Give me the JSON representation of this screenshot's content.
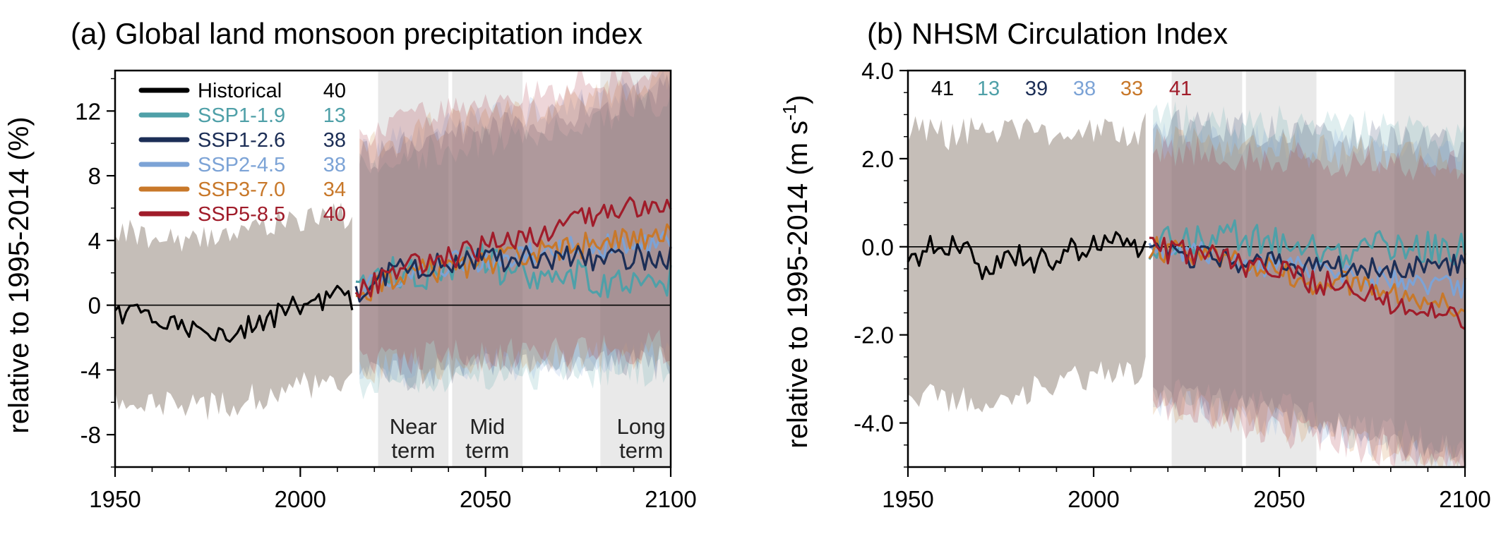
{
  "colors": {
    "Historical": "#000000",
    "SSP1-1.9": "#4fa0a8",
    "SSP1-2.6": "#1c2e56",
    "SSP2-4.5": "#7ca3d6",
    "SSP3-7.0": "#c8782a",
    "SSP5-8.5": "#a01c2a",
    "hist_band": "#bbb3ab",
    "period_shade": "#e9e9e9"
  },
  "chart_data": [
    {
      "type": "line",
      "title": "(a) Global land monsoon precipitation index",
      "ylabel": "relative to 1995-2014 (%)",
      "xlabel": "",
      "xlim": [
        1950,
        2100
      ],
      "ylim": [
        -10,
        14.5
      ],
      "xticks": [
        1950,
        2000,
        2050,
        2100
      ],
      "yticks": [
        -8,
        -4,
        0,
        4,
        8,
        12
      ],
      "ytick_labels": [
        "-8",
        "-4",
        "0",
        "4",
        "8",
        "12"
      ],
      "grid": false,
      "legend": "top-left",
      "periods": [
        {
          "label_line1": "Near",
          "label_line2": "term",
          "start": 2021,
          "end": 2040
        },
        {
          "label_line1": "Mid",
          "label_line2": "term",
          "start": 2041,
          "end": 2060
        },
        {
          "label_line1": "Long",
          "label_line2": "term",
          "start": 2081,
          "end": 2100
        }
      ],
      "series": [
        {
          "name": "Historical",
          "count": "40",
          "x": [
            1950,
            1955,
            1960,
            1965,
            1970,
            1975,
            1980,
            1985,
            1990,
            1995,
            2000,
            2005,
            2010,
            2014
          ],
          "values": [
            -0.6,
            -0.2,
            -0.8,
            -1.2,
            -1.4,
            -1.3,
            -1.7,
            -1.4,
            -1.1,
            -0.5,
            0.0,
            0.2,
            0.5,
            0.4
          ],
          "band_low": [
            -5.8,
            -6.0,
            -6.2,
            -6.1,
            -6.0,
            -6.3,
            -6.1,
            -5.8,
            -5.6,
            -5.2,
            -5.0,
            -4.8,
            -4.6,
            -4.5
          ],
          "band_high": [
            4.6,
            4.4,
            4.2,
            4.3,
            4.1,
            4.3,
            4.6,
            4.8,
            5.0,
            5.2,
            5.3,
            5.4,
            5.6,
            5.6
          ]
        },
        {
          "name": "SSP1-1.9",
          "count": "13",
          "x": [
            2015,
            2020,
            2025,
            2030,
            2035,
            2040,
            2045,
            2050,
            2055,
            2060,
            2065,
            2070,
            2075,
            2080,
            2085,
            2090,
            2095,
            2100
          ],
          "values": [
            0.5,
            1.3,
            1.9,
            2.2,
            2.1,
            2.2,
            2.5,
            2.7,
            2.3,
            2.1,
            2.0,
            1.9,
            1.8,
            1.6,
            1.5,
            1.7,
            1.8,
            1.6
          ]
        },
        {
          "name": "SSP1-2.6",
          "count": "38",
          "x": [
            2015,
            2020,
            2025,
            2030,
            2035,
            2040,
            2045,
            2050,
            2055,
            2060,
            2065,
            2070,
            2075,
            2080,
            2085,
            2090,
            2095,
            2100
          ],
          "values": [
            0.6,
            1.5,
            2.0,
            2.3,
            2.5,
            2.6,
            2.7,
            2.8,
            2.9,
            2.9,
            2.9,
            2.9,
            3.0,
            2.9,
            2.9,
            3.0,
            2.9,
            2.9
          ]
        },
        {
          "name": "SSP2-4.5",
          "count": "38",
          "x": [
            2015,
            2020,
            2025,
            2030,
            2035,
            2040,
            2045,
            2050,
            2055,
            2060,
            2065,
            2070,
            2075,
            2080,
            2085,
            2090,
            2095,
            2100
          ],
          "values": [
            0.6,
            1.3,
            1.8,
            2.1,
            2.3,
            2.5,
            2.7,
            2.9,
            3.0,
            3.1,
            3.3,
            3.4,
            3.5,
            3.6,
            3.7,
            3.8,
            3.9,
            4.0
          ]
        },
        {
          "name": "SSP3-7.0",
          "count": "34",
          "x": [
            2015,
            2020,
            2025,
            2030,
            2035,
            2040,
            2045,
            2050,
            2055,
            2060,
            2065,
            2070,
            2075,
            2080,
            2085,
            2090,
            2095,
            2100
          ],
          "values": [
            0.5,
            1.2,
            1.6,
            1.9,
            2.1,
            2.2,
            2.4,
            2.7,
            2.9,
            3.1,
            3.3,
            3.5,
            3.6,
            3.8,
            4.0,
            4.2,
            4.3,
            4.4
          ]
        },
        {
          "name": "SSP5-8.5",
          "count": "40",
          "x": [
            2015,
            2020,
            2025,
            2030,
            2035,
            2040,
            2045,
            2050,
            2055,
            2060,
            2065,
            2070,
            2075,
            2080,
            2085,
            2090,
            2095,
            2100
          ],
          "values": [
            0.6,
            1.4,
            2.0,
            2.4,
            2.7,
            2.9,
            3.2,
            3.6,
            3.9,
            4.2,
            4.5,
            4.8,
            5.2,
            5.5,
            5.8,
            6.1,
            6.3,
            6.2
          ]
        }
      ],
      "future_band": {
        "x": [
          2015,
          2040,
          2060,
          2080,
          2100
        ],
        "low": [
          -5.5,
          -5.0,
          -4.8,
          -4.6,
          -4.4
        ],
        "high": [
          7.5,
          9.0,
          9.8,
          10.8,
          12.0
        ]
      }
    },
    {
      "type": "line",
      "title": "(b) NHSM Circulation Index",
      "ylabel": "relative to 1995-2014 (m s",
      "ylabel_sup": "-1",
      "ylabel_end": ")",
      "xlabel": "",
      "xlim": [
        1950,
        2100
      ],
      "ylim": [
        -5,
        4
      ],
      "xticks": [
        1950,
        2000,
        2050,
        2100
      ],
      "yticks": [
        -4,
        -2,
        0,
        2,
        4
      ],
      "ytick_labels": [
        "-4.0",
        "-2.0",
        "0.0",
        "2.0",
        "4.0"
      ],
      "grid": false,
      "periods": [
        {
          "start": 2021,
          "end": 2040
        },
        {
          "start": 2041,
          "end": 2060
        },
        {
          "start": 2081,
          "end": 2100
        }
      ],
      "counts": [
        "41",
        "13",
        "39",
        "38",
        "33",
        "41"
      ],
      "series": [
        {
          "name": "Historical",
          "x": [
            1950,
            1955,
            1960,
            1965,
            1970,
            1975,
            1980,
            1985,
            1990,
            1995,
            2000,
            2005,
            2010,
            2014
          ],
          "values": [
            -0.3,
            -0.1,
            0.1,
            0.0,
            -0.6,
            -0.4,
            -0.2,
            -0.3,
            -0.2,
            -0.1,
            0.0,
            0.1,
            0.1,
            0.0
          ],
          "band_low": [
            -3.5,
            -3.4,
            -3.6,
            -3.5,
            -3.5,
            -3.4,
            -3.3,
            -3.2,
            -3.1,
            -3.0,
            -2.9,
            -2.9,
            -2.8,
            -2.8
          ],
          "band_high": [
            2.6,
            2.7,
            2.5,
            2.6,
            2.7,
            2.6,
            2.7,
            2.6,
            2.6,
            2.7,
            2.7,
            2.6,
            2.6,
            2.7
          ]
        },
        {
          "name": "SSP1-1.9",
          "x": [
            2015,
            2020,
            2025,
            2030,
            2035,
            2040,
            2045,
            2050,
            2055,
            2060,
            2065,
            2070,
            2075,
            2080,
            2085,
            2090,
            2095,
            2100
          ],
          "values": [
            0.0,
            0.1,
            0.1,
            0.2,
            0.3,
            0.2,
            0.1,
            0.2,
            0.1,
            0.0,
            -0.1,
            0.0,
            0.0,
            -0.1,
            0.0,
            0.1,
            0.0,
            -0.1
          ]
        },
        {
          "name": "SSP1-2.6",
          "x": [
            2015,
            2020,
            2025,
            2030,
            2035,
            2040,
            2045,
            2050,
            2055,
            2060,
            2065,
            2070,
            2075,
            2080,
            2085,
            2090,
            2095,
            2100
          ],
          "values": [
            0.0,
            -0.1,
            -0.2,
            -0.2,
            -0.3,
            -0.3,
            -0.4,
            -0.4,
            -0.5,
            -0.5,
            -0.5,
            -0.6,
            -0.5,
            -0.5,
            -0.4,
            -0.4,
            -0.4,
            -0.5
          ]
        },
        {
          "name": "SSP2-4.5",
          "x": [
            2015,
            2020,
            2025,
            2030,
            2035,
            2040,
            2045,
            2050,
            2055,
            2060,
            2065,
            2070,
            2075,
            2080,
            2085,
            2090,
            2095,
            2100
          ],
          "values": [
            0.0,
            -0.1,
            -0.2,
            -0.2,
            -0.3,
            -0.4,
            -0.4,
            -0.5,
            -0.5,
            -0.6,
            -0.6,
            -0.7,
            -0.7,
            -0.8,
            -0.8,
            -0.9,
            -0.9,
            -1.0
          ]
        },
        {
          "name": "SSP3-7.0",
          "x": [
            2015,
            2020,
            2025,
            2030,
            2035,
            2040,
            2045,
            2050,
            2055,
            2060,
            2065,
            2070,
            2075,
            2080,
            2085,
            2090,
            2095,
            2100
          ],
          "values": [
            0.0,
            -0.1,
            -0.1,
            -0.2,
            -0.3,
            -0.4,
            -0.5,
            -0.6,
            -0.7,
            -0.8,
            -0.8,
            -0.9,
            -1.0,
            -1.1,
            -1.1,
            -1.2,
            -1.3,
            -1.3
          ]
        },
        {
          "name": "SSP5-8.5",
          "x": [
            2015,
            2020,
            2025,
            2030,
            2035,
            2040,
            2045,
            2050,
            2055,
            2060,
            2065,
            2070,
            2075,
            2080,
            2085,
            2090,
            2095,
            2100
          ],
          "values": [
            0.0,
            -0.1,
            -0.1,
            -0.2,
            -0.3,
            -0.4,
            -0.5,
            -0.6,
            -0.7,
            -0.8,
            -0.9,
            -1.0,
            -1.1,
            -1.3,
            -1.4,
            -1.5,
            -1.6,
            -1.6
          ]
        }
      ],
      "future_band": {
        "x": [
          2015,
          2040,
          2060,
          2080,
          2100
        ],
        "low": [
          -3.1,
          -3.5,
          -3.8,
          -4.2,
          -4.6
        ],
        "high": [
          3.0,
          2.9,
          2.8,
          2.7,
          2.6
        ]
      }
    }
  ]
}
